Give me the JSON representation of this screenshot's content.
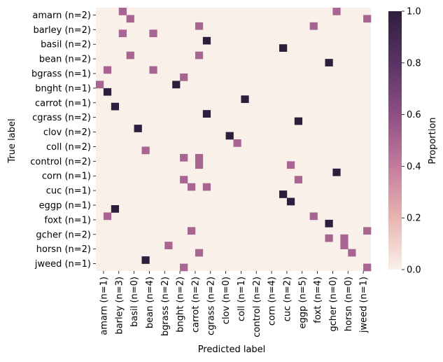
{
  "chart_data": {
    "type": "heatmap",
    "title": "",
    "xlabel": "Predicted label",
    "ylabel": "True label",
    "row_labels": [
      "amarn (n=2)",
      "barley (n=2)",
      "basil (n=2)",
      "bean (n=2)",
      "bgrass (n=1)",
      "bnght (n=1)",
      "carrot (n=1)",
      "cgrass (n=2)",
      "clov (n=2)",
      "coll (n=2)",
      "control (n=2)",
      "corn (n=1)",
      "cuc (n=1)",
      "eggp (n=1)",
      "foxt (n=1)",
      "gcher (n=2)",
      "horsn (n=2)",
      "jweed (n=1)"
    ],
    "col_labels": [
      "amarn (n=1)",
      "barley (n=3)",
      "basil (n=0)",
      "bean (n=4)",
      "bgrass (n=2)",
      "bnght (n=2)",
      "carrot (n=2)",
      "cgrass (n=2)",
      "clov (n=0)",
      "coll (n=1)",
      "control (n=2)",
      "corn (n=4)",
      "cuc (n=2)",
      "eggp (n=5)",
      "foxt (n=4)",
      "gcher (n=0)",
      "horsn (n=0)",
      "jweed (n=1)"
    ],
    "subrows_per_label": 2,
    "subcols_per_label": 2,
    "cells": [
      {
        "row": 0,
        "col": 3,
        "value": 0.5
      },
      {
        "row": 0,
        "col": 31,
        "value": 0.5
      },
      {
        "row": 1,
        "col": 4,
        "value": 0.5
      },
      {
        "row": 1,
        "col": 35,
        "value": 0.5
      },
      {
        "row": 2,
        "col": 13,
        "value": 0.5
      },
      {
        "row": 2,
        "col": 28,
        "value": 0.5
      },
      {
        "row": 3,
        "col": 3,
        "value": 0.5
      },
      {
        "row": 3,
        "col": 7,
        "value": 0.5
      },
      {
        "row": 4,
        "col": 14,
        "value": 1.0
      },
      {
        "row": 5,
        "col": 24,
        "value": 1.0
      },
      {
        "row": 6,
        "col": 4,
        "value": 0.5
      },
      {
        "row": 6,
        "col": 13,
        "value": 0.5
      },
      {
        "row": 7,
        "col": 30,
        "value": 1.0
      },
      {
        "row": 8,
        "col": 1,
        "value": 0.5
      },
      {
        "row": 8,
        "col": 7,
        "value": 0.5
      },
      {
        "row": 9,
        "col": 11,
        "value": 0.5
      },
      {
        "row": 10,
        "col": 0,
        "value": 0.5
      },
      {
        "row": 10,
        "col": 10,
        "value": 1.0
      },
      {
        "row": 11,
        "col": 1,
        "value": 1.0
      },
      {
        "row": 12,
        "col": 19,
        "value": 1.0
      },
      {
        "row": 13,
        "col": 2,
        "value": 1.0
      },
      {
        "row": 14,
        "col": 14,
        "value": 1.0
      },
      {
        "row": 15,
        "col": 26,
        "value": 1.0
      },
      {
        "row": 16,
        "col": 5,
        "value": 1.0
      },
      {
        "row": 17,
        "col": 17,
        "value": 1.0
      },
      {
        "row": 18,
        "col": 18,
        "value": 0.5
      },
      {
        "row": 19,
        "col": 6,
        "value": 0.5
      },
      {
        "row": 20,
        "col": 11,
        "value": 0.5
      },
      {
        "row": 20,
        "col": 13,
        "value": 0.5
      },
      {
        "row": 21,
        "col": 13,
        "value": 0.5
      },
      {
        "row": 21,
        "col": 25,
        "value": 0.5
      },
      {
        "row": 22,
        "col": 31,
        "value": 1.0
      },
      {
        "row": 23,
        "col": 11,
        "value": 0.5
      },
      {
        "row": 23,
        "col": 26,
        "value": 0.5
      },
      {
        "row": 24,
        "col": 12,
        "value": 0.5
      },
      {
        "row": 24,
        "col": 14,
        "value": 0.5
      },
      {
        "row": 25,
        "col": 24,
        "value": 1.0
      },
      {
        "row": 26,
        "col": 25,
        "value": 1.0
      },
      {
        "row": 27,
        "col": 2,
        "value": 1.0
      },
      {
        "row": 28,
        "col": 1,
        "value": 0.5
      },
      {
        "row": 28,
        "col": 28,
        "value": 0.5
      },
      {
        "row": 29,
        "col": 30,
        "value": 1.0
      },
      {
        "row": 30,
        "col": 12,
        "value": 0.5
      },
      {
        "row": 30,
        "col": 35,
        "value": 0.5
      },
      {
        "row": 31,
        "col": 30,
        "value": 0.5
      },
      {
        "row": 31,
        "col": 32,
        "value": 0.5
      },
      {
        "row": 32,
        "col": 9,
        "value": 0.5
      },
      {
        "row": 32,
        "col": 32,
        "value": 0.5
      },
      {
        "row": 33,
        "col": 13,
        "value": 0.5
      },
      {
        "row": 33,
        "col": 33,
        "value": 0.5
      },
      {
        "row": 34,
        "col": 6,
        "value": 1.0
      },
      {
        "row": 35,
        "col": 11,
        "value": 0.5
      },
      {
        "row": 35,
        "col": 35,
        "value": 0.5
      }
    ],
    "colorbar": {
      "label": "Proportion",
      "range": [
        0,
        1
      ],
      "ticks": [
        "0.0",
        "0.2",
        "0.4",
        "0.6",
        "0.8",
        "1.0"
      ],
      "colors": [
        "#faf0ea",
        "#e8b4b0",
        "#c47b9d",
        "#8e4f84",
        "#5a3366",
        "#2e1e3c"
      ]
    },
    "grid": false,
    "legend": "right"
  }
}
